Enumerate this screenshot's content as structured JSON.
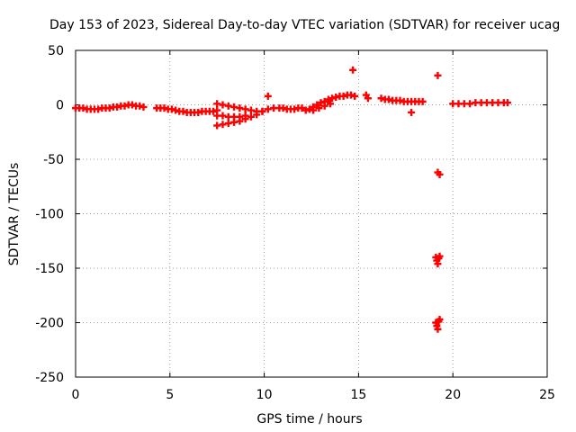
{
  "chart_data": {
    "type": "scatter",
    "title": "Day 153 of 2023, Sidereal Day-to-day VTEC variation (SDTVAR) for receiver ucag",
    "xlabel": "GPS time / hours",
    "ylabel": "SDTVAR / TECUs",
    "xlim": [
      0,
      25
    ],
    "ylim": [
      -250,
      50
    ],
    "xticks": [
      0,
      5,
      10,
      15,
      20,
      25
    ],
    "yticks": [
      -250,
      -200,
      -150,
      -100,
      -50,
      0,
      50
    ],
    "grid": true,
    "marker": "+",
    "color": "#ff0000",
    "series": [
      {
        "name": "SDTVAR",
        "points": [
          [
            0.0,
            -3
          ],
          [
            0.2,
            -3
          ],
          [
            0.4,
            -3
          ],
          [
            0.6,
            -4
          ],
          [
            0.8,
            -4
          ],
          [
            1.0,
            -4
          ],
          [
            1.2,
            -4
          ],
          [
            1.4,
            -3
          ],
          [
            1.6,
            -3
          ],
          [
            1.8,
            -3
          ],
          [
            2.0,
            -2
          ],
          [
            2.2,
            -2
          ],
          [
            2.4,
            -1
          ],
          [
            2.6,
            -1
          ],
          [
            2.8,
            0
          ],
          [
            3.0,
            0
          ],
          [
            3.2,
            -1
          ],
          [
            3.4,
            -1
          ],
          [
            3.6,
            -2
          ],
          [
            4.3,
            -3
          ],
          [
            4.5,
            -3
          ],
          [
            4.7,
            -3
          ],
          [
            4.9,
            -4
          ],
          [
            5.1,
            -4
          ],
          [
            5.3,
            -5
          ],
          [
            5.5,
            -6
          ],
          [
            5.7,
            -6
          ],
          [
            5.9,
            -7
          ],
          [
            6.1,
            -7
          ],
          [
            6.3,
            -7
          ],
          [
            6.5,
            -7
          ],
          [
            6.7,
            -6
          ],
          [
            6.9,
            -6
          ],
          [
            7.1,
            -6
          ],
          [
            7.3,
            -6
          ],
          [
            7.5,
            -5
          ],
          [
            7.5,
            1
          ],
          [
            7.8,
            0
          ],
          [
            8.1,
            -1
          ],
          [
            8.4,
            -2
          ],
          [
            8.7,
            -3
          ],
          [
            9.0,
            -4
          ],
          [
            9.3,
            -5
          ],
          [
            9.6,
            -6
          ],
          [
            9.9,
            -6
          ],
          [
            7.5,
            -19
          ],
          [
            7.8,
            -18
          ],
          [
            8.1,
            -17
          ],
          [
            8.4,
            -16
          ],
          [
            8.7,
            -15
          ],
          [
            9.0,
            -13
          ],
          [
            9.3,
            -11
          ],
          [
            9.6,
            -9
          ],
          [
            9.9,
            -6
          ],
          [
            10.2,
            -4
          ],
          [
            10.5,
            -3
          ],
          [
            7.5,
            -10
          ],
          [
            7.8,
            -10
          ],
          [
            8.1,
            -11
          ],
          [
            8.4,
            -11
          ],
          [
            8.7,
            -11
          ],
          [
            9.0,
            -10
          ],
          [
            10.2,
            8
          ],
          [
            10.8,
            -3
          ],
          [
            11.0,
            -3
          ],
          [
            11.2,
            -4
          ],
          [
            11.4,
            -4
          ],
          [
            11.6,
            -4
          ],
          [
            11.8,
            -3
          ],
          [
            12.0,
            -3
          ],
          [
            12.2,
            -5
          ],
          [
            12.4,
            -4
          ],
          [
            12.6,
            -2
          ],
          [
            12.8,
            0
          ],
          [
            13.0,
            2
          ],
          [
            13.2,
            3
          ],
          [
            13.4,
            5
          ],
          [
            13.6,
            6
          ],
          [
            13.8,
            7
          ],
          [
            14.0,
            8
          ],
          [
            14.2,
            8
          ],
          [
            14.4,
            9
          ],
          [
            14.6,
            9
          ],
          [
            14.8,
            8
          ],
          [
            12.6,
            -5
          ],
          [
            12.9,
            -3
          ],
          [
            13.2,
            -1
          ],
          [
            13.5,
            1
          ],
          [
            14.7,
            32
          ],
          [
            15.4,
            9
          ],
          [
            15.5,
            6
          ],
          [
            16.2,
            6
          ],
          [
            16.4,
            5
          ],
          [
            16.6,
            5
          ],
          [
            16.8,
            4
          ],
          [
            17.0,
            4
          ],
          [
            17.2,
            4
          ],
          [
            17.4,
            3
          ],
          [
            17.6,
            3
          ],
          [
            17.8,
            3
          ],
          [
            18.0,
            3
          ],
          [
            18.2,
            3
          ],
          [
            18.4,
            3
          ],
          [
            17.8,
            -7
          ],
          [
            19.2,
            27
          ],
          [
            19.2,
            -62
          ],
          [
            19.3,
            -64
          ],
          [
            19.1,
            -140
          ],
          [
            19.15,
            -143
          ],
          [
            19.2,
            -146
          ],
          [
            19.25,
            -141
          ],
          [
            19.3,
            -139
          ],
          [
            19.1,
            -200
          ],
          [
            19.15,
            -203
          ],
          [
            19.2,
            -206
          ],
          [
            19.25,
            -199
          ],
          [
            19.3,
            -197
          ],
          [
            20.0,
            1
          ],
          [
            20.3,
            1
          ],
          [
            20.6,
            1
          ],
          [
            20.9,
            1
          ],
          [
            21.2,
            2
          ],
          [
            21.5,
            2
          ],
          [
            21.8,
            2
          ],
          [
            22.1,
            2
          ],
          [
            22.4,
            2
          ],
          [
            22.7,
            2
          ],
          [
            22.9,
            2
          ]
        ]
      }
    ]
  }
}
